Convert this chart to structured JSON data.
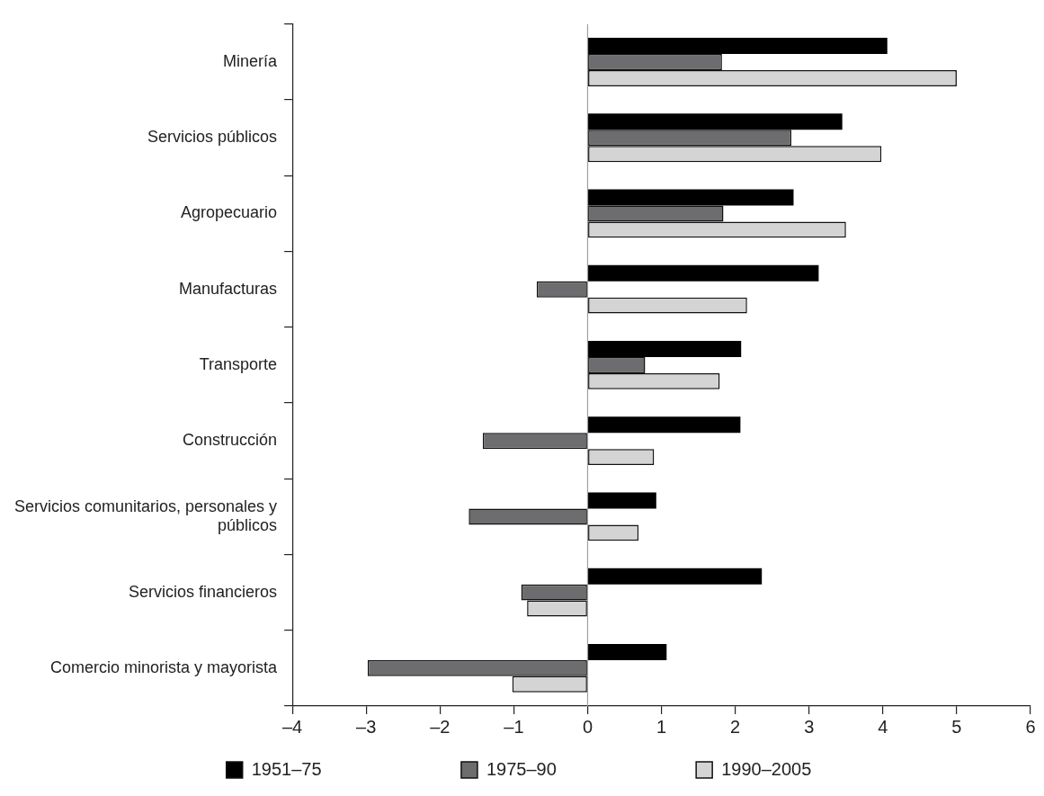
{
  "chart_data": {
    "type": "bar",
    "orientation": "horizontal",
    "categories": [
      "Minería",
      "Servicios públicos",
      "Agropecuario",
      "Manufacturas",
      "Transporte",
      "Construcción",
      "Servicios comunitarios, personales y públicos",
      "Servicios financieros",
      "Comercio minorista y mayorista"
    ],
    "series": [
      {
        "name": "1951–75",
        "color": "#000000",
        "values": [
          4.06,
          3.45,
          2.79,
          3.13,
          2.08,
          2.07,
          0.93,
          2.36,
          1.07
        ]
      },
      {
        "name": "1975–90",
        "color": "#6d6d6f",
        "values": [
          1.82,
          2.76,
          1.84,
          -0.69,
          0.78,
          -1.42,
          -1.61,
          -0.9,
          -2.98
        ]
      },
      {
        "name": "1990–2005",
        "color": "#d4d4d4",
        "values": [
          5.0,
          3.98,
          3.5,
          2.16,
          1.79,
          0.9,
          0.69,
          -0.82,
          -1.02
        ]
      }
    ],
    "xlim": [
      -4,
      6
    ],
    "xticks": [
      {
        "value": -4,
        "label": "–4"
      },
      {
        "value": -3,
        "label": "–3"
      },
      {
        "value": -2,
        "label": "–2"
      },
      {
        "value": -1,
        "label": "–1"
      },
      0,
      1,
      2,
      3,
      4,
      5,
      6
    ],
    "ref_lines": [
      {
        "axis": "x",
        "value": 0,
        "color": "#a0a0a0"
      }
    ],
    "grid": false,
    "legend": "bottom"
  }
}
